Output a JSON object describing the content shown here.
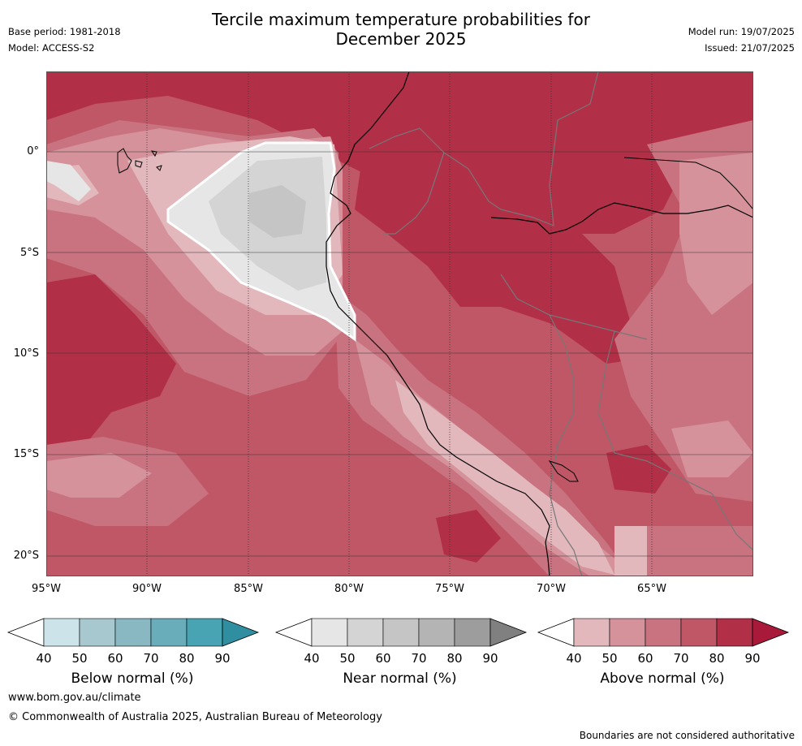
{
  "title_line1": "Tercile maximum temperature probabilities for",
  "title_line2": "December 2025",
  "header_left": {
    "base_period": "Base period: 1981-2018",
    "model": "Model: ACCESS-S2"
  },
  "header_right": {
    "model_run": "Model run: 19/07/2025",
    "issued": "Issued: 21/07/2025"
  },
  "lat_labels": [
    "0°",
    "5°S",
    "10°S",
    "15°S",
    "20°S"
  ],
  "lon_labels": [
    "95°W",
    "90°W",
    "85°W",
    "80°W",
    "75°W",
    "70°W",
    "65°W"
  ],
  "colorbars": [
    {
      "label": "Below normal (%)",
      "ticks": [
        "40",
        "50",
        "60",
        "70",
        "80",
        "90"
      ],
      "colors": [
        "#cce4e9",
        "#a8c8cf",
        "#89b7c2",
        "#6aadba",
        "#48a3b2",
        "#2f8fa0"
      ]
    },
    {
      "label": "Near normal (%)",
      "ticks": [
        "40",
        "50",
        "60",
        "70",
        "80",
        "90"
      ],
      "colors": [
        "#e6e6e6",
        "#d4d4d4",
        "#c5c5c5",
        "#b4b4b4",
        "#9d9d9d",
        "#808080"
      ]
    },
    {
      "label": "Above normal (%)",
      "ticks": [
        "40",
        "50",
        "60",
        "70",
        "80",
        "90"
      ],
      "colors": [
        "#e2b8bd",
        "#d5929b",
        "#c97280",
        "#bf5766",
        "#b22f48",
        "#a8193a"
      ]
    }
  ],
  "footer": {
    "website": "www.bom.gov.au/climate",
    "copyright": "© Commonwealth of Australia 2025, Australian Bureau of Meteorology",
    "disclaimer": "Boundaries are not considered authoritative"
  }
}
